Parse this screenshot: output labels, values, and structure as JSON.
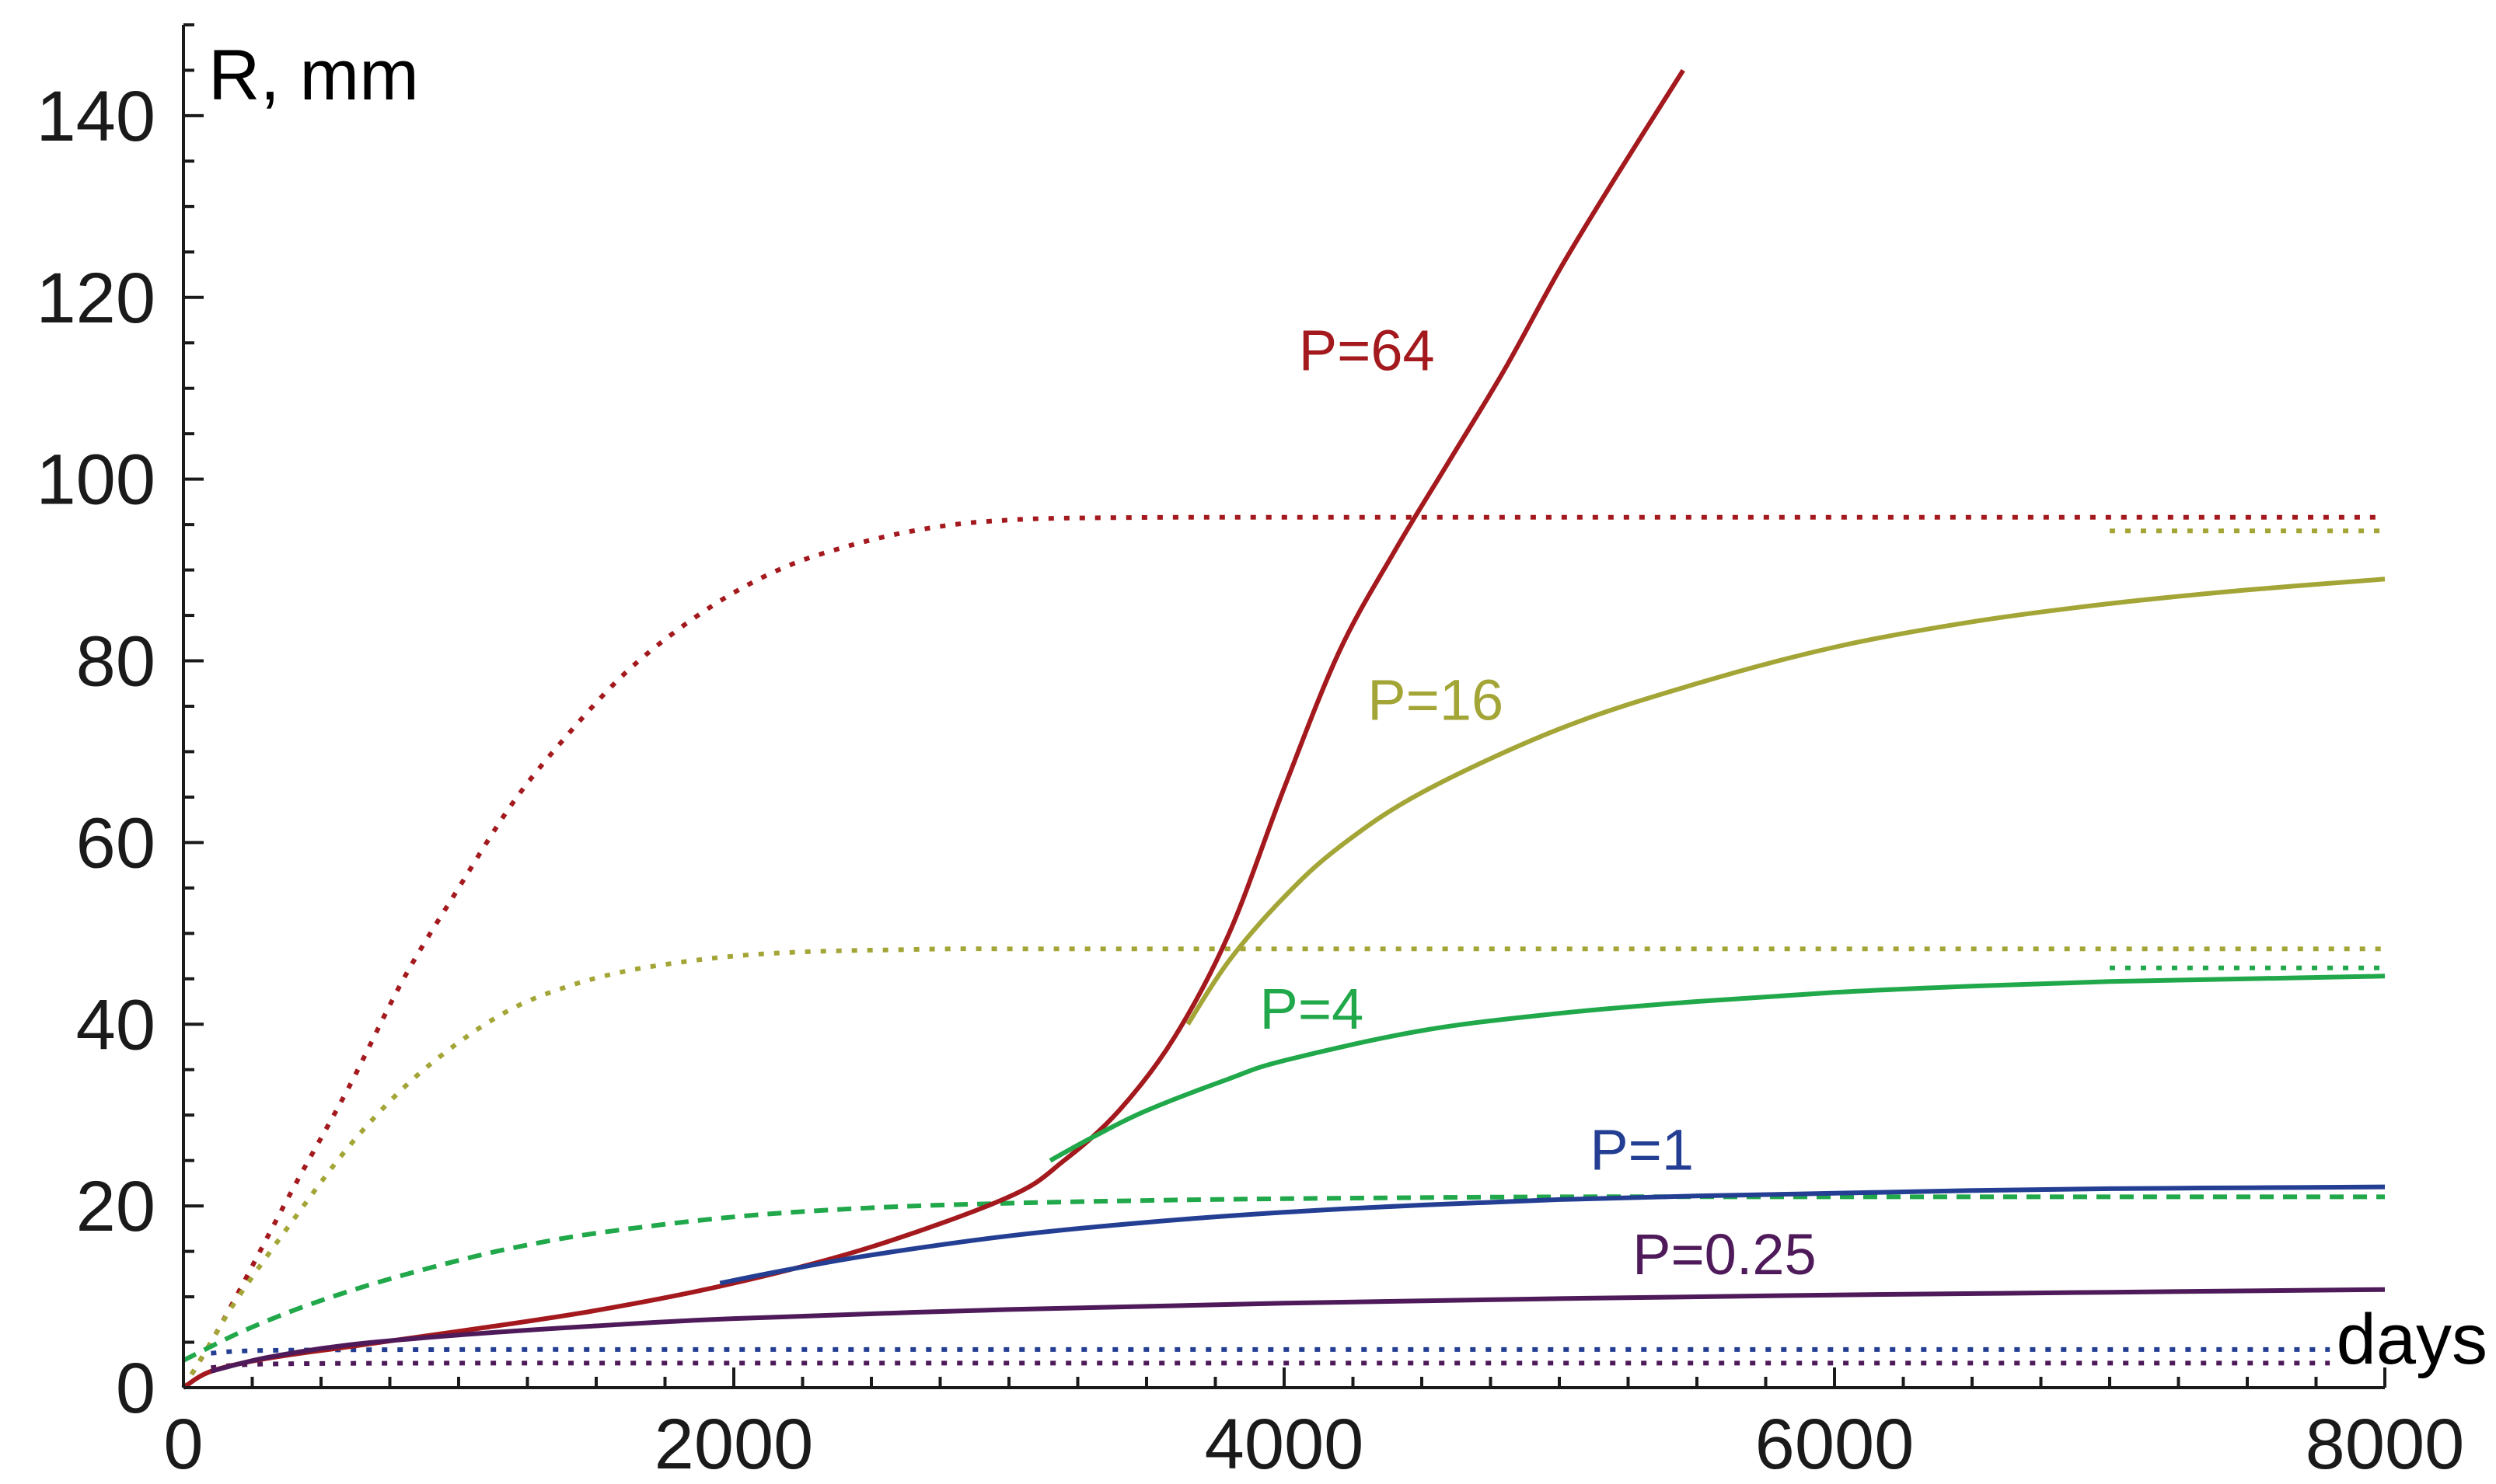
{
  "chart_data": {
    "type": "line",
    "title": "",
    "xlabel": "days",
    "ylabel": "R, mm",
    "xlim": [
      0,
      8000
    ],
    "ylim": [
      0,
      150
    ],
    "x_ticks": [
      0,
      2000,
      4000,
      6000,
      8000
    ],
    "y_ticks": [
      0,
      20,
      40,
      60,
      80,
      100,
      120,
      140
    ],
    "x_tick_labels": [
      "0",
      "2000",
      "4000",
      "6000",
      "8000"
    ],
    "y_tick_labels": [
      "0",
      "20",
      "40",
      "60",
      "80",
      "100",
      "120",
      "140"
    ],
    "grid": false,
    "legend": "inline labels",
    "series": [
      {
        "name": "P=64 solid",
        "label": "P=64",
        "color": "#a3191d",
        "style": "solid",
        "x": [
          0,
          100,
          300,
          600,
          1000,
          1500,
          2000,
          2500,
          3000,
          3200,
          3400,
          3600,
          3800,
          4000,
          4200,
          4400,
          4600,
          4800,
          5000,
          5200,
          5450
        ],
        "y": [
          0,
          1.8,
          3.2,
          4.5,
          6.2,
          8.5,
          11.5,
          15.5,
          21,
          25,
          30.5,
          38.5,
          50,
          66,
          81,
          92,
          102,
          112,
          123,
          133,
          145
        ]
      },
      {
        "name": "P=16 solid",
        "label": "P=16",
        "color": "#a3a536",
        "style": "solid",
        "x": [
          3650,
          3800,
          4000,
          4200,
          4500,
          5000,
          5500,
          6000,
          6500,
          7000,
          7500,
          8000
        ],
        "y": [
          40,
          47,
          54,
          59.5,
          65.5,
          72.5,
          77.5,
          81.5,
          84.3,
          86.3,
          87.8,
          89
        ]
      },
      {
        "name": "P=4 solid",
        "label": "P=4",
        "color": "#20a84a",
        "style": "solid",
        "x": [
          3150,
          3300,
          3500,
          3800,
          4000,
          4500,
          5000,
          5500,
          6000,
          6500,
          7000,
          7500,
          8000
        ],
        "y": [
          25,
          27.5,
          30.5,
          34,
          36,
          39.3,
          41.2,
          42.5,
          43.5,
          44.2,
          44.7,
          45,
          45.3
        ]
      },
      {
        "name": "P=1 solid",
        "label": "P=1",
        "color": "#233e92",
        "style": "solid",
        "x": [
          1950,
          2200,
          2500,
          3000,
          3500,
          4000,
          4500,
          5000,
          5500,
          6000,
          6500,
          7000,
          7500,
          8000
        ],
        "y": [
          11.5,
          13,
          14.6,
          16.7,
          18.2,
          19.3,
          20.1,
          20.7,
          21.1,
          21.4,
          21.7,
          21.9,
          22,
          22.1
        ]
      },
      {
        "name": "P=0.25 solid",
        "label": "P=0.25",
        "color": "#4e1a5a",
        "style": "solid",
        "x": [
          100,
          300,
          600,
          1000,
          1500,
          2000,
          3000,
          4000,
          5000,
          6000,
          7000,
          8000
        ],
        "y": [
          1.8,
          3.3,
          4.7,
          5.8,
          6.8,
          7.6,
          8.6,
          9.3,
          9.8,
          10.2,
          10.5,
          10.8
        ]
      },
      {
        "name": "P=64 dotted",
        "color": "#a3191d",
        "style": "dotted",
        "x": [
          0,
          100,
          200,
          400,
          600,
          800,
          1000,
          1200,
          1400,
          1600,
          1800,
          2000,
          2200,
          2400,
          2600,
          2800,
          3000,
          3200,
          3600,
          4000,
          5000,
          6000,
          7000,
          8000
        ],
        "y": [
          0,
          5,
          10.5,
          22,
          33,
          45,
          55,
          64.5,
          72,
          78.5,
          83.5,
          87.5,
          90.5,
          92.5,
          94,
          95,
          95.5,
          95.7,
          95.8,
          95.8,
          95.8,
          95.8,
          95.8,
          95.8
        ]
      },
      {
        "name": "P=16 dotted",
        "color": "#a3a536",
        "style": "dotted",
        "x": [
          0,
          100,
          200,
          400,
          600,
          800,
          1000,
          1200,
          1400,
          1600,
          1800,
          2000,
          2200,
          2400,
          2600,
          2800,
          3000,
          3500,
          4000,
          5000,
          6000,
          7000,
          8000
        ],
        "y": [
          0,
          5,
          10,
          18.5,
          26.5,
          33,
          38,
          41.8,
          44.2,
          45.8,
          46.8,
          47.5,
          47.9,
          48.1,
          48.2,
          48.3,
          48.3,
          48.3,
          48.3,
          48.3,
          48.3,
          48.3,
          48.3
        ]
      },
      {
        "name": "P=4 dashed",
        "color": "#20a84a",
        "style": "dashed",
        "x": [
          0,
          200,
          400,
          600,
          800,
          1000,
          1200,
          1500,
          2000,
          2500,
          3000,
          3500,
          4000,
          5000,
          6000,
          7000,
          8000
        ],
        "y": [
          3,
          6,
          8.5,
          10.6,
          12.4,
          14,
          15.4,
          17,
          18.8,
          19.8,
          20.3,
          20.6,
          20.8,
          21,
          21,
          21,
          21
        ]
      },
      {
        "name": "P=1 dotted",
        "color": "#233e92",
        "style": "dotted",
        "x": [
          100,
          300,
          1000,
          2000,
          3000,
          4000,
          5000,
          6000,
          7000,
          7800
        ],
        "y": [
          3.8,
          4.1,
          4.2,
          4.2,
          4.2,
          4.2,
          4.2,
          4.2,
          4.2,
          4.2
        ]
      },
      {
        "name": "P=0.25 dotted",
        "color": "#4e1a5a",
        "style": "dotted",
        "x": [
          100,
          300,
          1000,
          2000,
          3000,
          4000,
          5000,
          6000,
          7000,
          7800
        ],
        "y": [
          2.2,
          2.6,
          2.7,
          2.7,
          2.7,
          2.7,
          2.7,
          2.7,
          2.7,
          2.7
        ]
      },
      {
        "name": "P=16 limit dotted",
        "color": "#a3a536",
        "style": "dotted",
        "x": [
          7000,
          8000
        ],
        "y": [
          94.3,
          94.3
        ]
      },
      {
        "name": "P=4 limit dotted",
        "color": "#20a84a",
        "style": "dotted",
        "x": [
          7000,
          8000
        ],
        "y": [
          46.2,
          46.2
        ]
      }
    ],
    "annotations": [
      {
        "text": "P=64",
        "x": 4300,
        "y": 112,
        "color": "#a3191d"
      },
      {
        "text": "P=16",
        "x": 4550,
        "y": 73.5,
        "color": "#a3a536"
      },
      {
        "text": "P=4",
        "x": 4100,
        "y": 39.5,
        "color": "#20a84a"
      },
      {
        "text": "P=1",
        "x": 5300,
        "y": 24,
        "color": "#233e92"
      },
      {
        "text": "P=0.25",
        "x": 5600,
        "y": 12.5,
        "color": "#4e1a5a"
      }
    ]
  }
}
